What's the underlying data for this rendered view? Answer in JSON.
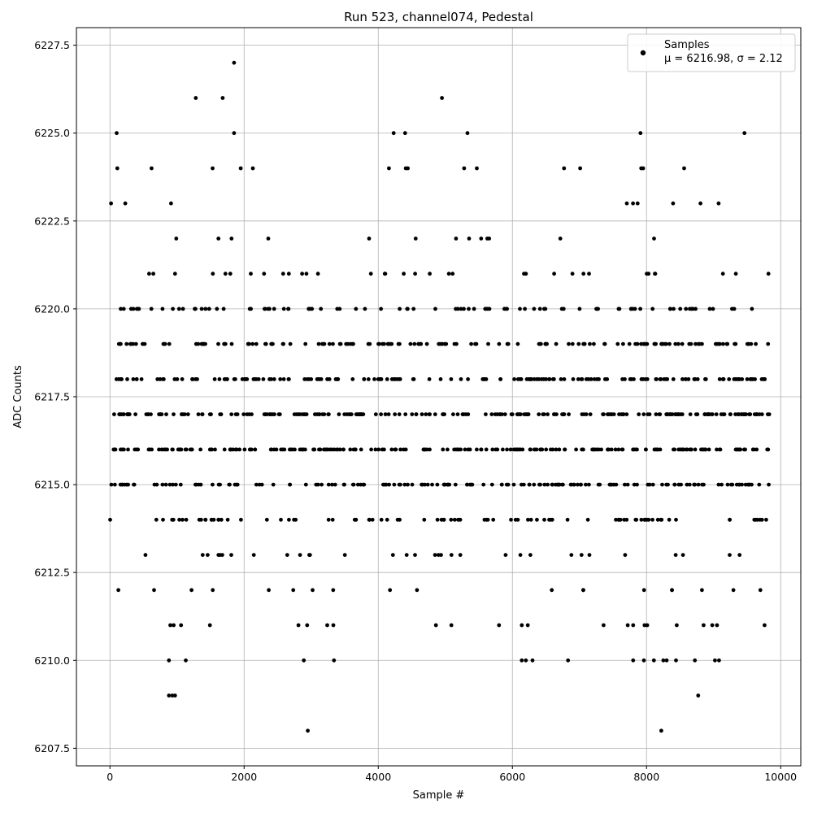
{
  "chart_data": {
    "type": "scatter",
    "title": "Run 523, channel074, Pedestal",
    "xlabel": "Sample #",
    "ylabel": "ADC Counts",
    "xlim": [
      -500,
      10300
    ],
    "ylim": [
      6207.0,
      6228.0
    ],
    "xticks": [
      0,
      2000,
      4000,
      6000,
      8000,
      10000
    ],
    "yticks": [
      6207.5,
      6210.0,
      6212.5,
      6215.0,
      6217.5,
      6220.0,
      6222.5,
      6225.0,
      6227.5
    ],
    "xtick_labels": [
      "0",
      "2000",
      "4000",
      "6000",
      "8000",
      "10000"
    ],
    "ytick_labels": [
      "6207.5",
      "6210.0",
      "6212.5",
      "6215.0",
      "6217.5",
      "6220.0",
      "6222.5",
      "6225.0",
      "6227.5"
    ],
    "grid": true,
    "legend": {
      "placement": "top-right",
      "series_name": "Samples",
      "stats_text": "μ = 6216.98, σ = 2.12"
    },
    "marker_color": "#000000",
    "series": [
      {
        "name": "Samples",
        "sample_count": 9840,
        "mean": 6216.98,
        "std": 2.12,
        "outliers": [
          [
            1850,
            6227
          ],
          [
            1280,
            6226
          ],
          [
            1680,
            6226
          ],
          [
            4950,
            6226
          ],
          [
            100,
            6225
          ],
          [
            1850,
            6225
          ],
          [
            4230,
            6225
          ],
          [
            4400,
            6225
          ],
          [
            5330,
            6225
          ],
          [
            7910,
            6225
          ],
          [
            9460,
            6225
          ],
          [
            110,
            6224
          ],
          [
            620,
            6224
          ],
          [
            1530,
            6224
          ],
          [
            1950,
            6224
          ],
          [
            2130,
            6224
          ],
          [
            4160,
            6224
          ],
          [
            4410,
            6224
          ],
          [
            4440,
            6224
          ],
          [
            5280,
            6224
          ],
          [
            5470,
            6224
          ],
          [
            6770,
            6224
          ],
          [
            7010,
            6224
          ],
          [
            7920,
            6224
          ],
          [
            7950,
            6224
          ],
          [
            8560,
            6224
          ],
          [
            900,
            6211
          ],
          [
            950,
            6211
          ],
          [
            1060,
            6211
          ],
          [
            1490,
            6211
          ],
          [
            2810,
            6211
          ],
          [
            2940,
            6211
          ],
          [
            3240,
            6211
          ],
          [
            3330,
            6211
          ],
          [
            4860,
            6211
          ],
          [
            5090,
            6211
          ],
          [
            5800,
            6211
          ],
          [
            6140,
            6211
          ],
          [
            6230,
            6211
          ],
          [
            7360,
            6211
          ],
          [
            7720,
            6211
          ],
          [
            7800,
            6211
          ],
          [
            7970,
            6211
          ],
          [
            8010,
            6211
          ],
          [
            8450,
            6211
          ],
          [
            8850,
            6211
          ],
          [
            8980,
            6211
          ],
          [
            9050,
            6211
          ],
          [
            9760,
            6211
          ],
          [
            880,
            6210
          ],
          [
            1130,
            6210
          ],
          [
            2890,
            6210
          ],
          [
            3340,
            6210
          ],
          [
            6140,
            6210
          ],
          [
            6200,
            6210
          ],
          [
            6300,
            6210
          ],
          [
            6830,
            6210
          ],
          [
            7800,
            6210
          ],
          [
            7960,
            6210
          ],
          [
            8110,
            6210
          ],
          [
            8250,
            6210
          ],
          [
            8300,
            6210
          ],
          [
            8440,
            6210
          ],
          [
            8720,
            6210
          ],
          [
            9020,
            6210
          ],
          [
            9080,
            6210
          ],
          [
            880,
            6209
          ],
          [
            930,
            6209
          ],
          [
            970,
            6209
          ],
          [
            8770,
            6209
          ],
          [
            2950,
            6208
          ],
          [
            8220,
            6208
          ]
        ]
      }
    ]
  }
}
